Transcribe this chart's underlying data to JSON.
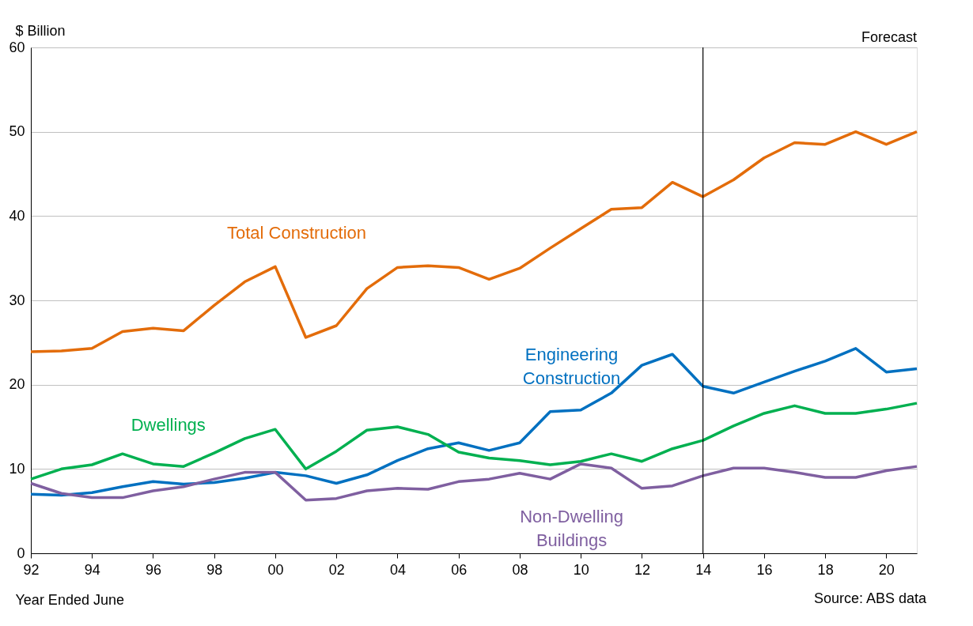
{
  "chart_data": {
    "type": "line",
    "ylabel": "$ Billion",
    "xlabel": "Year Ended June",
    "x": [
      1992,
      1993,
      1994,
      1995,
      1996,
      1997,
      1998,
      1999,
      2000,
      2001,
      2002,
      2003,
      2004,
      2005,
      2006,
      2007,
      2008,
      2009,
      2010,
      2011,
      2012,
      2013,
      2014,
      2015,
      2016,
      2017,
      2018,
      2019,
      2020,
      2021
    ],
    "series": [
      {
        "name": "Total Construction",
        "color": "#e36c0a",
        "values": [
          23.9,
          24.0,
          24.3,
          26.3,
          26.7,
          26.4,
          29.4,
          32.2,
          34.0,
          25.6,
          27.0,
          31.4,
          33.9,
          34.1,
          33.9,
          32.5,
          33.8,
          36.2,
          38.5,
          40.8,
          41.0,
          44.0,
          42.3,
          44.3,
          46.9,
          48.7,
          48.5,
          50.0,
          48.5,
          50.0
        ]
      },
      {
        "name": "Engineering Construction",
        "color": "#0070c0",
        "values": [
          7.0,
          6.9,
          7.2,
          7.9,
          8.5,
          8.2,
          8.4,
          8.9,
          9.6,
          9.2,
          8.3,
          9.3,
          11.0,
          12.4,
          13.1,
          12.2,
          13.1,
          16.8,
          17.0,
          19.0,
          22.3,
          23.6,
          19.8,
          19.0,
          20.3,
          21.6,
          22.8,
          24.3,
          21.5,
          21.9
        ]
      },
      {
        "name": "Dwellings",
        "color": "#00b050",
        "values": [
          8.8,
          10.0,
          10.5,
          11.8,
          10.6,
          10.3,
          11.9,
          13.6,
          14.7,
          10.0,
          12.1,
          14.6,
          15.0,
          14.1,
          12.0,
          11.3,
          11.0,
          10.5,
          10.9,
          11.8,
          10.9,
          12.4,
          13.4,
          15.1,
          16.6,
          17.5,
          16.6,
          16.6,
          17.1,
          17.8
        ]
      },
      {
        "name": "Non-Dwelling Buildings",
        "color": "#7f5fa0",
        "values": [
          8.3,
          7.1,
          6.6,
          6.6,
          7.4,
          7.9,
          8.8,
          9.6,
          9.6,
          6.3,
          6.5,
          7.4,
          7.7,
          7.6,
          8.5,
          8.8,
          9.5,
          8.8,
          10.6,
          10.1,
          7.7,
          8.0,
          9.2,
          10.1,
          10.1,
          9.6,
          9.0,
          9.0,
          9.8,
          10.3
        ]
      }
    ],
    "xlim": [
      1992,
      2021
    ],
    "xticks": [
      {
        "value": 1992,
        "label": "92"
      },
      {
        "value": 1994,
        "label": "94"
      },
      {
        "value": 1996,
        "label": "96"
      },
      {
        "value": 1998,
        "label": "98"
      },
      {
        "value": 2000,
        "label": "00"
      },
      {
        "value": 2002,
        "label": "02"
      },
      {
        "value": 2004,
        "label": "04"
      },
      {
        "value": 2006,
        "label": "06"
      },
      {
        "value": 2008,
        "label": "08"
      },
      {
        "value": 2010,
        "label": "10"
      },
      {
        "value": 2012,
        "label": "12"
      },
      {
        "value": 2014,
        "label": "14"
      },
      {
        "value": 2016,
        "label": "16"
      },
      {
        "value": 2018,
        "label": "18"
      },
      {
        "value": 2020,
        "label": "20"
      }
    ],
    "ylim": [
      0,
      60
    ],
    "yticks": [
      0,
      10,
      20,
      30,
      40,
      50,
      60
    ],
    "ref_lines": [
      {
        "axis": "x",
        "value": 2014,
        "color": "#000000"
      }
    ],
    "annotations": [
      "Forecast",
      "Source: ABS data"
    ],
    "grid": "y",
    "legend": false,
    "marker": "none",
    "line_style": "solid"
  }
}
